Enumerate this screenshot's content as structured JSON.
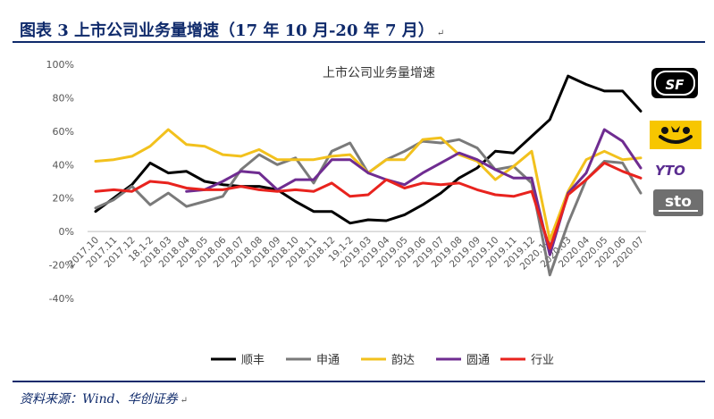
{
  "header": {
    "title": "图表 3   上市公司业务量增速（17 年 10 月-20 年 7 月）",
    "mark": "↵"
  },
  "footer": {
    "source": "资料来源：Wind、华创证券",
    "mark": "↵"
  },
  "logos": [
    {
      "name": "sf-logo",
      "text": "SF",
      "bg": "#000000",
      "fg": "#ffffff"
    },
    {
      "name": "yunda-logo",
      "text": "",
      "bg": "#f7c600",
      "fg": "#111111"
    },
    {
      "name": "yto-logo",
      "text": "YTO",
      "bg": "#ffffff",
      "fg": "#5b2d91"
    },
    {
      "name": "sto-logo",
      "text": "sto",
      "bg": "#6f6f6f",
      "fg": "#ffffff"
    }
  ],
  "chart_data": {
    "type": "line",
    "title": "上市公司业务量增速",
    "ylim": [
      -0.4,
      1.0
    ],
    "yticks": [
      "-40%",
      "-20%",
      "0%",
      "20%",
      "40%",
      "60%",
      "80%",
      "100%"
    ],
    "grid": false,
    "legend_position": "bottom",
    "categories": [
      "2017.10",
      "2017.11",
      "2017.12",
      "18.1-2",
      "2018.03",
      "2018.04",
      "2018.05",
      "2018.06",
      "2018.07",
      "2018.08",
      "2018.09",
      "2018.10",
      "2018.11",
      "2018.12",
      "19.1-2",
      "2019.03",
      "2019.04",
      "2019.05",
      "2019.06",
      "2019.07",
      "2019.08",
      "2019.09",
      "2019.10",
      "2019.11",
      "2019.12",
      "2020.1-2",
      "2020.03",
      "2020.04",
      "2020.05",
      "2020.06",
      "2020.07"
    ],
    "series": [
      {
        "name": "顺丰",
        "color": "#000000",
        "values": [
          0.12,
          0.2,
          0.28,
          0.41,
          0.35,
          0.36,
          0.3,
          0.28,
          0.27,
          0.27,
          0.25,
          0.18,
          0.12,
          0.12,
          0.05,
          0.07,
          0.065,
          0.1,
          0.16,
          0.23,
          0.32,
          0.38,
          0.48,
          0.47,
          0.57,
          0.67,
          0.93,
          0.88,
          0.84,
          0.84,
          0.72
        ]
      },
      {
        "name": "申通",
        "color": "#7a7a7a",
        "values": [
          0.14,
          0.19,
          0.27,
          0.16,
          0.23,
          0.15,
          0.18,
          0.21,
          0.37,
          0.46,
          0.4,
          0.44,
          0.29,
          0.48,
          0.53,
          0.35,
          0.43,
          0.48,
          0.54,
          0.53,
          0.55,
          0.5,
          0.37,
          0.39,
          0.29,
          -0.26,
          0.05,
          0.31,
          0.42,
          0.41,
          0.23
        ]
      },
      {
        "name": "韵达",
        "color": "#f2c11d",
        "values": [
          0.42,
          0.43,
          0.45,
          0.51,
          0.61,
          0.52,
          0.51,
          0.46,
          0.45,
          0.49,
          0.43,
          0.43,
          0.43,
          0.45,
          0.46,
          0.35,
          0.43,
          0.43,
          0.55,
          0.56,
          0.46,
          0.42,
          0.31,
          0.39,
          0.48,
          -0.05,
          0.24,
          0.43,
          0.48,
          0.43,
          0.44
        ]
      },
      {
        "name": "圆通",
        "color": "#6f2c91",
        "values": [
          null,
          null,
          null,
          null,
          null,
          0.24,
          0.25,
          0.3,
          0.36,
          0.35,
          0.25,
          0.31,
          0.31,
          0.43,
          0.43,
          0.35,
          0.31,
          0.28,
          0.35,
          0.41,
          0.47,
          0.43,
          0.37,
          0.32,
          0.32,
          -0.14,
          0.23,
          0.35,
          0.61,
          0.54,
          0.38
        ]
      },
      {
        "name": "行业",
        "color": "#e8231e",
        "values": [
          0.24,
          0.25,
          0.24,
          0.3,
          0.29,
          0.26,
          0.25,
          0.25,
          0.27,
          0.25,
          0.24,
          0.25,
          0.24,
          0.29,
          0.21,
          0.22,
          0.31,
          0.26,
          0.29,
          0.28,
          0.29,
          0.25,
          0.22,
          0.21,
          0.24,
          -0.1,
          0.22,
          0.31,
          0.41,
          0.36,
          0.32
        ]
      }
    ]
  }
}
